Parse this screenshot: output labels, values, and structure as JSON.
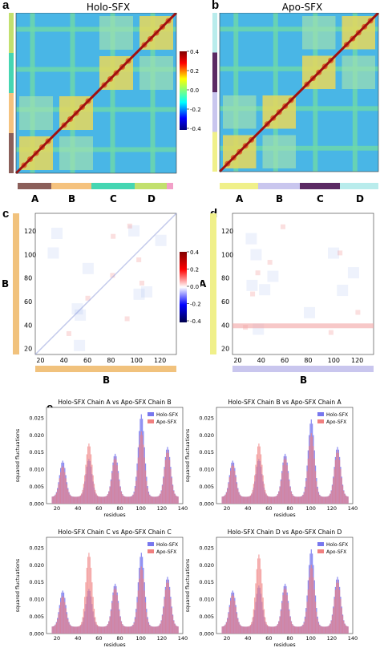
{
  "panels": {
    "a": "a",
    "b": "b",
    "c": "c",
    "d": "d",
    "e": "e"
  },
  "heatmaps": {
    "holo": {
      "title": "Holo-SFX",
      "chain_labels": [
        "A",
        "B",
        "C",
        "D"
      ],
      "chain_colors": [
        "#8b5f5a",
        "#f5c27e",
        "#45d6b2",
        "#c2e06e"
      ]
    },
    "apo": {
      "title": "Apo-SFX",
      "chain_labels": [
        "A",
        "B",
        "C",
        "D"
      ],
      "chain_colors": [
        "#f0f08a",
        "#c9c6ee",
        "#5b2a63",
        "#b9ecec"
      ]
    },
    "colorbar_ticks": [
      "0.4",
      "0.2",
      "0.0",
      "-0.2",
      "-0.4"
    ]
  },
  "diffmaps": {
    "c": {
      "ylabel": "B",
      "xlabel": "B",
      "left_bar_color": "#f1c27d",
      "bottom_bar_color": "#f1c27d",
      "ticks": [
        "20",
        "40",
        "60",
        "80",
        "100",
        "120"
      ]
    },
    "d": {
      "ylabel": "A",
      "xlabel": "B",
      "left_bar_color": "#f0f08a",
      "bottom_bar_color": "#c9c6ee",
      "ticks": [
        "20",
        "40",
        "60",
        "80",
        "100",
        "120"
      ]
    },
    "colorbar_ticks": [
      "0.4",
      "0.2",
      "0.0",
      "-0.2",
      "-0.4"
    ]
  },
  "chart_data": [
    {
      "type": "bar",
      "title": "Holo-SFX Chain A vs Apo-SFX Chain B",
      "xlabel": "residues",
      "ylabel": "squared fluctuations",
      "xlim": [
        10,
        140
      ],
      "ylim": [
        0,
        0.028
      ],
      "yticks": [
        "0.000",
        "0.005",
        "0.010",
        "0.015",
        "0.020",
        "0.025"
      ],
      "xticks": [
        "20",
        "40",
        "60",
        "80",
        "100",
        "120",
        "140"
      ],
      "series": [
        {
          "name": "Holo-SFX",
          "color": "#7777ee"
        },
        {
          "name": "Apo-SFX",
          "color": "#f08080"
        }
      ],
      "peaks": [
        [
          25,
          0.0105,
          0.009
        ],
        [
          50,
          0.011,
          0.0155
        ],
        [
          75,
          0.0125,
          0.0115
        ],
        [
          100,
          0.024,
          0.019
        ],
        [
          125,
          0.0145,
          0.0135
        ]
      ]
    },
    {
      "type": "bar",
      "title": "Holo-SFX Chain B vs Apo-SFX Chain A",
      "xlabel": "residues",
      "ylabel": "squared fluctuations",
      "xlim": [
        10,
        140
      ],
      "ylim": [
        0,
        0.028
      ],
      "yticks": [
        "0.000",
        "0.005",
        "0.010",
        "0.015",
        "0.020",
        "0.025"
      ],
      "xticks": [
        "20",
        "40",
        "60",
        "80",
        "100",
        "120",
        "140"
      ],
      "series": [
        {
          "name": "Holo-SFX",
          "color": "#7777ee"
        },
        {
          "name": "Apo-SFX",
          "color": "#f08080"
        }
      ],
      "peaks": [
        [
          25,
          0.0105,
          0.0095
        ],
        [
          50,
          0.011,
          0.0155
        ],
        [
          75,
          0.0125,
          0.0115
        ],
        [
          100,
          0.0225,
          0.0185
        ],
        [
          125,
          0.0145,
          0.0135
        ]
      ]
    },
    {
      "type": "bar",
      "title": "Holo-SFX Chain C vs Apo-SFX Chain C",
      "xlabel": "residues",
      "ylabel": "squared fluctuations",
      "xlim": [
        10,
        140
      ],
      "ylim": [
        0,
        0.028
      ],
      "yticks": [
        "0.000",
        "0.005",
        "0.010",
        "0.015",
        "0.020",
        "0.025"
      ],
      "xticks": [
        "20",
        "40",
        "60",
        "80",
        "100",
        "120",
        "140"
      ],
      "series": [
        {
          "name": "Holo-SFX",
          "color": "#7777ee"
        },
        {
          "name": "Apo-SFX",
          "color": "#f08080"
        }
      ],
      "peaks": [
        [
          25,
          0.0105,
          0.009
        ],
        [
          50,
          0.011,
          0.0215
        ],
        [
          75,
          0.0125,
          0.0115
        ],
        [
          100,
          0.0215,
          0.0175
        ],
        [
          125,
          0.0145,
          0.0135
        ]
      ]
    },
    {
      "type": "bar",
      "title": "Holo-SFX Chain D vs Apo-SFX Chain D",
      "xlabel": "residues",
      "ylabel": "squared fluctuations",
      "xlim": [
        10,
        140
      ],
      "ylim": [
        0,
        0.028
      ],
      "yticks": [
        "0.000",
        "0.005",
        "0.010",
        "0.015",
        "0.020",
        "0.025"
      ],
      "xticks": [
        "20",
        "40",
        "60",
        "80",
        "100",
        "120",
        "140"
      ],
      "series": [
        {
          "name": "Holo-SFX",
          "color": "#7777ee"
        },
        {
          "name": "Apo-SFX",
          "color": "#f08080"
        }
      ],
      "peaks": [
        [
          25,
          0.0105,
          0.0095
        ],
        [
          50,
          0.012,
          0.021
        ],
        [
          75,
          0.0125,
          0.0115
        ],
        [
          100,
          0.0225,
          0.018
        ],
        [
          125,
          0.0145,
          0.0135
        ]
      ]
    }
  ]
}
